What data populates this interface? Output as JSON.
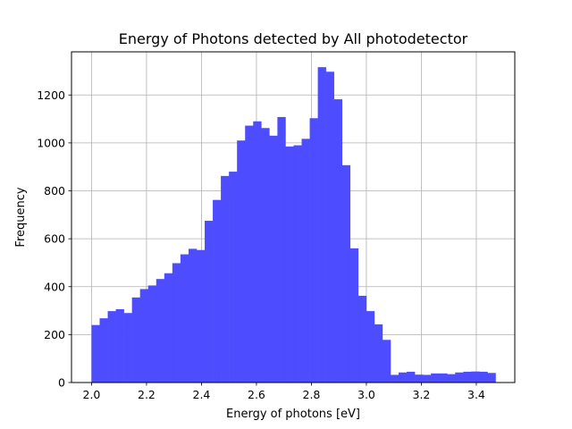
{
  "chart_data": {
    "type": "bar",
    "subtype": "histogram",
    "title": "Energy of Photons detected by All photodetector",
    "xlabel": "Energy of photons [eV]",
    "ylabel": "Frequency",
    "xlim": [
      1.927,
      3.54
    ],
    "ylim": [
      0,
      1380
    ],
    "xticks": [
      "2.0",
      "2.2",
      "2.4",
      "2.6",
      "2.8",
      "3.0",
      "3.2",
      "3.4"
    ],
    "yticks": [
      "0",
      "200",
      "400",
      "600",
      "800",
      "1000",
      "1200"
    ],
    "grid": true,
    "color": "#4d4dff",
    "bin_start": 2.0,
    "bin_width": 0.0294,
    "values": [
      240,
      268,
      298,
      306,
      290,
      355,
      390,
      405,
      432,
      456,
      498,
      535,
      558,
      553,
      675,
      762,
      862,
      880,
      1010,
      1072,
      1090,
      1062,
      1030,
      1108,
      985,
      990,
      1017,
      1103,
      1316,
      1297,
      1182,
      907,
      560,
      362,
      298,
      243,
      178,
      32,
      42,
      45,
      33,
      32,
      38,
      38,
      35,
      42,
      45,
      46,
      45,
      40
    ]
  }
}
